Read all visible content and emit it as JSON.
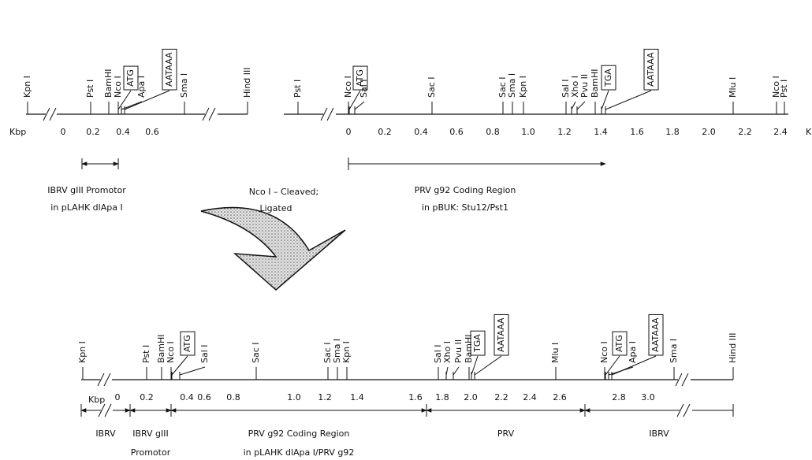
{
  "top_left": {
    "kbp_label": "Kbp",
    "ticks": [
      "0",
      "0.2",
      "0.4",
      "0.6"
    ],
    "sites": [
      {
        "label": "Kpn I"
      },
      {
        "label": "Pst I"
      },
      {
        "label": "BamHI"
      },
      {
        "label": "Nco I"
      },
      {
        "label": "ATG",
        "boxed": true
      },
      {
        "label": "Apa I"
      },
      {
        "label": "AATAAA",
        "boxed": true
      },
      {
        "label": "Sma I"
      },
      {
        "label": "Hind III"
      }
    ],
    "caption": [
      "IBRV gIII Promotor",
      "in pLAHK dlApa I"
    ]
  },
  "top_right": {
    "kbp_label": "K",
    "ticks": [
      "0",
      "0.2",
      "0.4",
      "0.6",
      "0.8",
      "1.0",
      "1.2",
      "1.4",
      "1.6",
      "1.8",
      "2.0",
      "2.2",
      "2.4"
    ],
    "sites": [
      {
        "label": "Pst I"
      },
      {
        "label": "Nco I"
      },
      {
        "label": "ATG",
        "boxed": true
      },
      {
        "label": "Sal I"
      },
      {
        "label": "Sac I"
      },
      {
        "label": "Sac I"
      },
      {
        "label": "Sma I"
      },
      {
        "label": "Kpn I"
      },
      {
        "label": "Sal I"
      },
      {
        "label": "Xho I"
      },
      {
        "label": "Pvu II"
      },
      {
        "label": "BamHI"
      },
      {
        "label": "TGA",
        "boxed": true
      },
      {
        "label": "AATAAA",
        "boxed": true
      },
      {
        "label": "Mlu I"
      },
      {
        "label": "Nco I"
      },
      {
        "label": "Pst I"
      }
    ],
    "caption": [
      "PRV g92 Coding Region",
      "in pBUK: Stu12/Pst1"
    ]
  },
  "ligation_label": [
    "Nco I – Cleaved;",
    "Ligated"
  ],
  "bottom": {
    "kbp_label": "Kbp",
    "ticks": [
      "0",
      "0.2",
      "0.4",
      "0.6",
      "0.8",
      "1.0",
      "1.2",
      "1.4",
      "1.6",
      "1.8",
      "2.0",
      "2.2",
      "2.4",
      "2.6",
      "2.8",
      "3.0"
    ],
    "sites": [
      {
        "label": "Kpn I"
      },
      {
        "label": "Pst I"
      },
      {
        "label": "BamHI"
      },
      {
        "label": "Nco I"
      },
      {
        "label": "ATG",
        "boxed": true
      },
      {
        "label": "Sal I"
      },
      {
        "label": "Sac I"
      },
      {
        "label": "Sac I"
      },
      {
        "label": "Sma I"
      },
      {
        "label": "Kpn I"
      },
      {
        "label": "Sal I"
      },
      {
        "label": "Xho I"
      },
      {
        "label": "Pvu II"
      },
      {
        "label": "BamHI"
      },
      {
        "label": "TGA",
        "boxed": true
      },
      {
        "label": "AATAAA",
        "boxed": true
      },
      {
        "label": "Mlu I"
      },
      {
        "label": "Nco I"
      },
      {
        "label": "ATG",
        "boxed": true
      },
      {
        "label": "Apa I"
      },
      {
        "label": "AATAAA",
        "boxed": true
      },
      {
        "label": "Sma I"
      },
      {
        "label": "Hind III"
      }
    ],
    "regions": [
      [
        "IBRV"
      ],
      [
        "IBRV gIII",
        "Promotor"
      ],
      [
        "PRV g92 Coding Region",
        "in pLAHK dlApa I/PRV g92"
      ],
      [
        "PRV"
      ],
      [
        "IBRV"
      ]
    ]
  }
}
